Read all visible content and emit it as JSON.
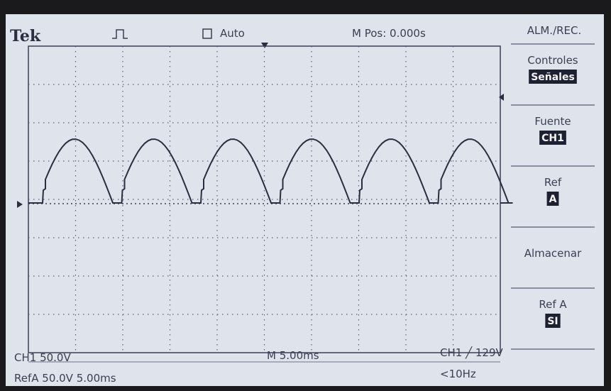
{
  "header": {
    "brand": "Tek",
    "trigger_mode": "Auto",
    "position": "M Pos: 0.000s"
  },
  "menu": {
    "title": "ALM./REC.",
    "items": [
      {
        "label": "Controles",
        "value": "Señales"
      },
      {
        "label": "Fuente",
        "value": "CH1"
      },
      {
        "label": "Ref",
        "value": "A"
      },
      {
        "label": "Almacenar"
      },
      {
        "label": "Ref A",
        "value": "SI"
      }
    ]
  },
  "footer": {
    "channel": "CH1  50.0V",
    "timebase": "M 5.00ms",
    "trigger": "CH1 ╱ 129V",
    "reference": "RefA 50.0V 5.00ms",
    "frequency": "<10Hz"
  }
}
